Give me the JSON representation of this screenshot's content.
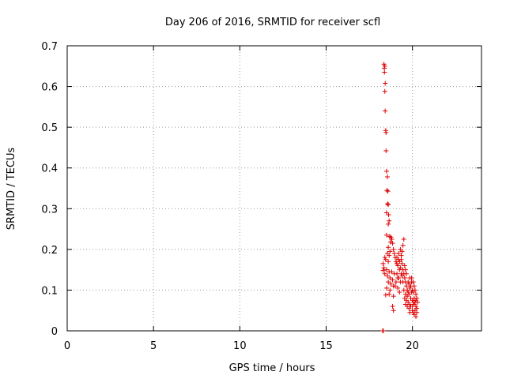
{
  "chart_data": {
    "type": "scatter",
    "title": "Day 206 of 2016, SRMTID for receiver scfl",
    "xlabel": "GPS time / hours",
    "ylabel": "SRMTID / TECUs",
    "xlim": [
      0,
      24
    ],
    "ylim": [
      0,
      0.7
    ],
    "xticks": [
      0,
      5,
      10,
      15,
      20
    ],
    "yticks": [
      0,
      0.1,
      0.2,
      0.3,
      0.4,
      0.5,
      0.6,
      0.7
    ],
    "xtick_labels": [
      "0",
      "5",
      "10",
      "15",
      "20"
    ],
    "ytick_labels": [
      "0",
      "0.1",
      "0.2",
      "0.3",
      "0.4",
      "0.5",
      "0.6",
      "0.7"
    ],
    "grid": true,
    "marker": "+",
    "color": "#e00000",
    "series": [
      {
        "name": "scfl",
        "points": [
          [
            18.28,
            0.0
          ],
          [
            18.29,
            0.0
          ],
          [
            18.3,
            0.0
          ],
          [
            18.31,
            0.0
          ],
          [
            18.35,
            0.655
          ],
          [
            18.37,
            0.645
          ],
          [
            18.4,
            0.65
          ],
          [
            18.38,
            0.635
          ],
          [
            18.42,
            0.608
          ],
          [
            18.4,
            0.588
          ],
          [
            18.42,
            0.54
          ],
          [
            18.45,
            0.492
          ],
          [
            18.47,
            0.487
          ],
          [
            18.47,
            0.442
          ],
          [
            18.5,
            0.392
          ],
          [
            18.55,
            0.378
          ],
          [
            18.52,
            0.345
          ],
          [
            18.58,
            0.343
          ],
          [
            18.55,
            0.312
          ],
          [
            18.6,
            0.31
          ],
          [
            18.5,
            0.29
          ],
          [
            18.62,
            0.285
          ],
          [
            18.65,
            0.27
          ],
          [
            18.6,
            0.262
          ],
          [
            18.5,
            0.235
          ],
          [
            18.68,
            0.232
          ],
          [
            18.75,
            0.23
          ],
          [
            18.8,
            0.225
          ],
          [
            18.72,
            0.218
          ],
          [
            18.85,
            0.215
          ],
          [
            18.6,
            0.205
          ],
          [
            18.9,
            0.2
          ],
          [
            18.7,
            0.195
          ],
          [
            18.55,
            0.19
          ],
          [
            18.65,
            0.185
          ],
          [
            18.95,
            0.19
          ],
          [
            18.4,
            0.18
          ],
          [
            18.45,
            0.175
          ],
          [
            18.6,
            0.17
          ],
          [
            18.3,
            0.165
          ],
          [
            18.35,
            0.155
          ],
          [
            18.5,
            0.15
          ],
          [
            18.65,
            0.145
          ],
          [
            18.8,
            0.145
          ],
          [
            18.3,
            0.148
          ],
          [
            18.4,
            0.14
          ],
          [
            18.55,
            0.135
          ],
          [
            18.7,
            0.13
          ],
          [
            18.85,
            0.125
          ],
          [
            18.6,
            0.12
          ],
          [
            18.75,
            0.115
          ],
          [
            18.9,
            0.11
          ],
          [
            18.5,
            0.105
          ],
          [
            18.7,
            0.1
          ],
          [
            18.65,
            0.09
          ],
          [
            18.45,
            0.088
          ],
          [
            18.9,
            0.085
          ],
          [
            18.85,
            0.06
          ],
          [
            18.9,
            0.05
          ],
          [
            19.0,
            0.18
          ],
          [
            19.05,
            0.17
          ],
          [
            19.1,
            0.165
          ],
          [
            19.15,
            0.16
          ],
          [
            19.2,
            0.175
          ],
          [
            19.25,
            0.17
          ],
          [
            19.3,
            0.155
          ],
          [
            19.35,
            0.185
          ],
          [
            19.4,
            0.195
          ],
          [
            19.45,
            0.21
          ],
          [
            19.5,
            0.225
          ],
          [
            19.3,
            0.2
          ],
          [
            19.1,
            0.14
          ],
          [
            19.2,
            0.13
          ],
          [
            19.3,
            0.12
          ],
          [
            19.4,
            0.135
          ],
          [
            19.5,
            0.14
          ],
          [
            19.6,
            0.15
          ],
          [
            19.0,
            0.11
          ],
          [
            19.15,
            0.105
          ],
          [
            19.25,
            0.095
          ],
          [
            19.45,
            0.12
          ],
          [
            19.55,
            0.13
          ],
          [
            19.65,
            0.11
          ],
          [
            19.7,
            0.1
          ],
          [
            19.75,
            0.12
          ],
          [
            19.8,
            0.115
          ],
          [
            19.85,
            0.105
          ],
          [
            19.5,
            0.1
          ],
          [
            19.6,
            0.09
          ],
          [
            19.7,
            0.085
          ],
          [
            19.8,
            0.09
          ],
          [
            19.9,
            0.11
          ],
          [
            19.95,
            0.12
          ],
          [
            20.0,
            0.1
          ],
          [
            20.05,
            0.095
          ],
          [
            19.55,
            0.08
          ],
          [
            19.65,
            0.075
          ],
          [
            19.75,
            0.07
          ],
          [
            19.85,
            0.065
          ],
          [
            19.9,
            0.08
          ],
          [
            20.0,
            0.075
          ],
          [
            20.05,
            0.07
          ],
          [
            20.1,
            0.08
          ],
          [
            19.6,
            0.065
          ],
          [
            19.7,
            0.06
          ],
          [
            19.8,
            0.055
          ],
          [
            19.9,
            0.06
          ],
          [
            20.0,
            0.06
          ],
          [
            20.1,
            0.065
          ],
          [
            20.15,
            0.07
          ],
          [
            20.2,
            0.075
          ],
          [
            20.25,
            0.08
          ],
          [
            20.2,
            0.06
          ],
          [
            20.15,
            0.05
          ],
          [
            20.05,
            0.045
          ],
          [
            20.1,
            0.04
          ],
          [
            20.2,
            0.035
          ],
          [
            20.25,
            0.055
          ],
          [
            20.3,
            0.07
          ],
          [
            19.95,
            0.13
          ],
          [
            20.05,
            0.12
          ],
          [
            20.1,
            0.11
          ],
          [
            19.85,
            0.13
          ],
          [
            19.65,
            0.14
          ],
          [
            19.55,
            0.16
          ],
          [
            19.45,
            0.15
          ],
          [
            19.35,
            0.14
          ],
          [
            19.25,
            0.15
          ],
          [
            19.15,
            0.13
          ],
          [
            19.05,
            0.12
          ],
          [
            18.95,
            0.14
          ],
          [
            19.4,
            0.165
          ],
          [
            19.35,
            0.175
          ],
          [
            19.2,
            0.19
          ],
          [
            19.1,
            0.18
          ],
          [
            19.75,
            0.095
          ],
          [
            19.95,
            0.095
          ],
          [
            20.15,
            0.1
          ],
          [
            20.25,
            0.045
          ],
          [
            19.85,
            0.045
          ],
          [
            20.0,
            0.05
          ],
          [
            20.2,
            0.09
          ],
          [
            19.6,
            0.12
          ]
        ]
      }
    ]
  }
}
